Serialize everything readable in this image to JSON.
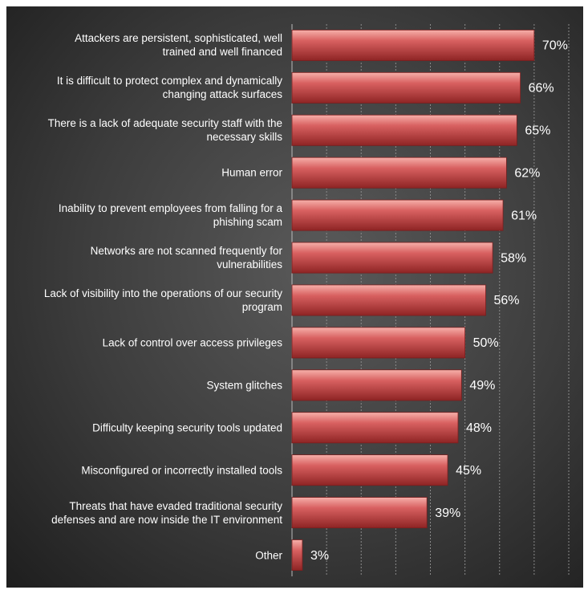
{
  "chart_data": {
    "type": "bar",
    "orientation": "horizontal",
    "categories": [
      "Attackers are persistent, sophisticated, well trained and well financed",
      "It is difficult to protect complex and dynamically changing attack surfaces",
      "There is a lack of adequate security staff with the necessary skills",
      "Human error",
      "Inability to prevent employees from falling for a phishing scam",
      "Networks are not scanned frequently for vulnerabilities",
      "Lack of visibility into the operations of our security program",
      "Lack of control over access privileges",
      "System glitches",
      "Difficulty keeping security tools updated",
      "Misconfigured or incorrectly installed tools",
      "Threats that have evaded traditional security defenses and are now inside the IT environment",
      "Other"
    ],
    "values": [
      70,
      66,
      65,
      62,
      61,
      58,
      56,
      50,
      49,
      48,
      45,
      39,
      3
    ],
    "value_labels": [
      "70%",
      "66%",
      "65%",
      "62%",
      "61%",
      "58%",
      "56%",
      "50%",
      "49%",
      "48%",
      "45%",
      "39%",
      "3%"
    ],
    "color": "#c84848",
    "xlim": [
      0,
      80
    ],
    "xticks": [
      0,
      10,
      20,
      30,
      40,
      50,
      60,
      70,
      80
    ],
    "grid": true
  }
}
